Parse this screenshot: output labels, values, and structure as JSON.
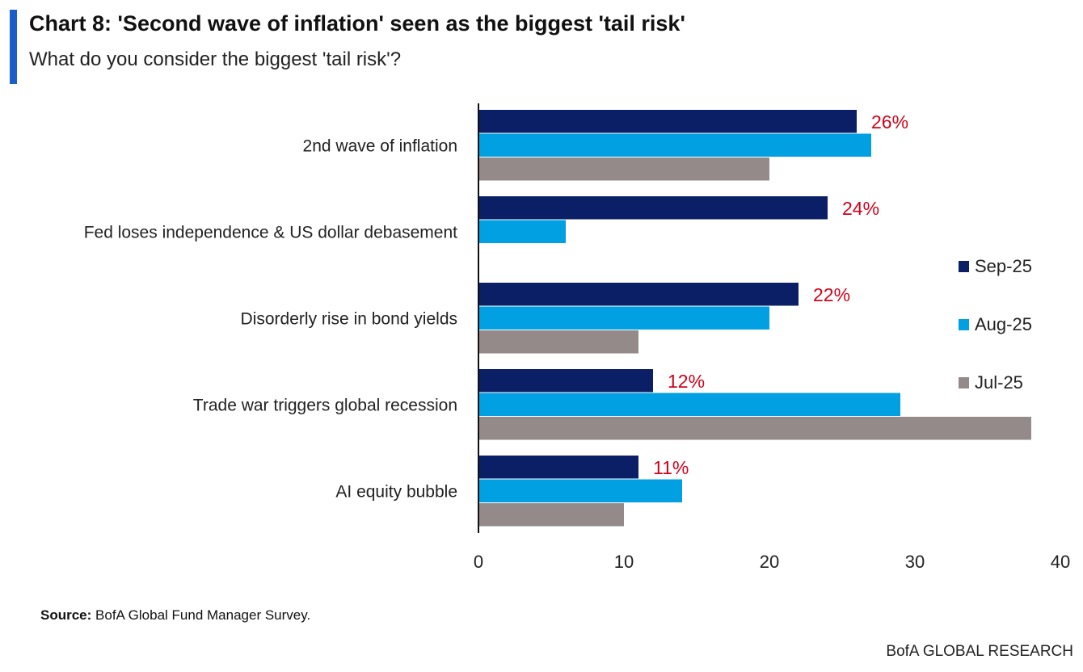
{
  "title": "Chart 8: 'Second wave of inflation' seen as the biggest 'tail risk'",
  "subtitle": "What do you consider the biggest 'tail risk'?",
  "source_label": "Source:",
  "source_text": "BofA Global Fund Manager Survey.",
  "brand": "BofA GLOBAL RESEARCH",
  "chart_data": {
    "type": "bar",
    "orientation": "horizontal",
    "categories": [
      "2nd wave of inflation",
      "Fed loses independence & US dollar debasement",
      "Disorderly rise in bond yields",
      "Trade war triggers global recession",
      "AI equity bubble"
    ],
    "series": [
      {
        "name": "Sep-25",
        "color": "#0b1f66",
        "values": [
          26,
          24,
          22,
          12,
          11
        ]
      },
      {
        "name": "Aug-25",
        "color": "#00a0e3",
        "values": [
          27,
          6,
          20,
          29,
          14
        ]
      },
      {
        "name": "Jul-25",
        "color": "#958a8a",
        "values": [
          20,
          null,
          11,
          38,
          10
        ]
      }
    ],
    "data_labels": [
      "26%",
      "24%",
      "22%",
      "12%",
      "11%"
    ],
    "data_label_color": "#d0021b",
    "xlim": [
      0,
      40
    ],
    "xticks": [
      0,
      10,
      20,
      30,
      40
    ],
    "legend": "right",
    "grid": false
  }
}
